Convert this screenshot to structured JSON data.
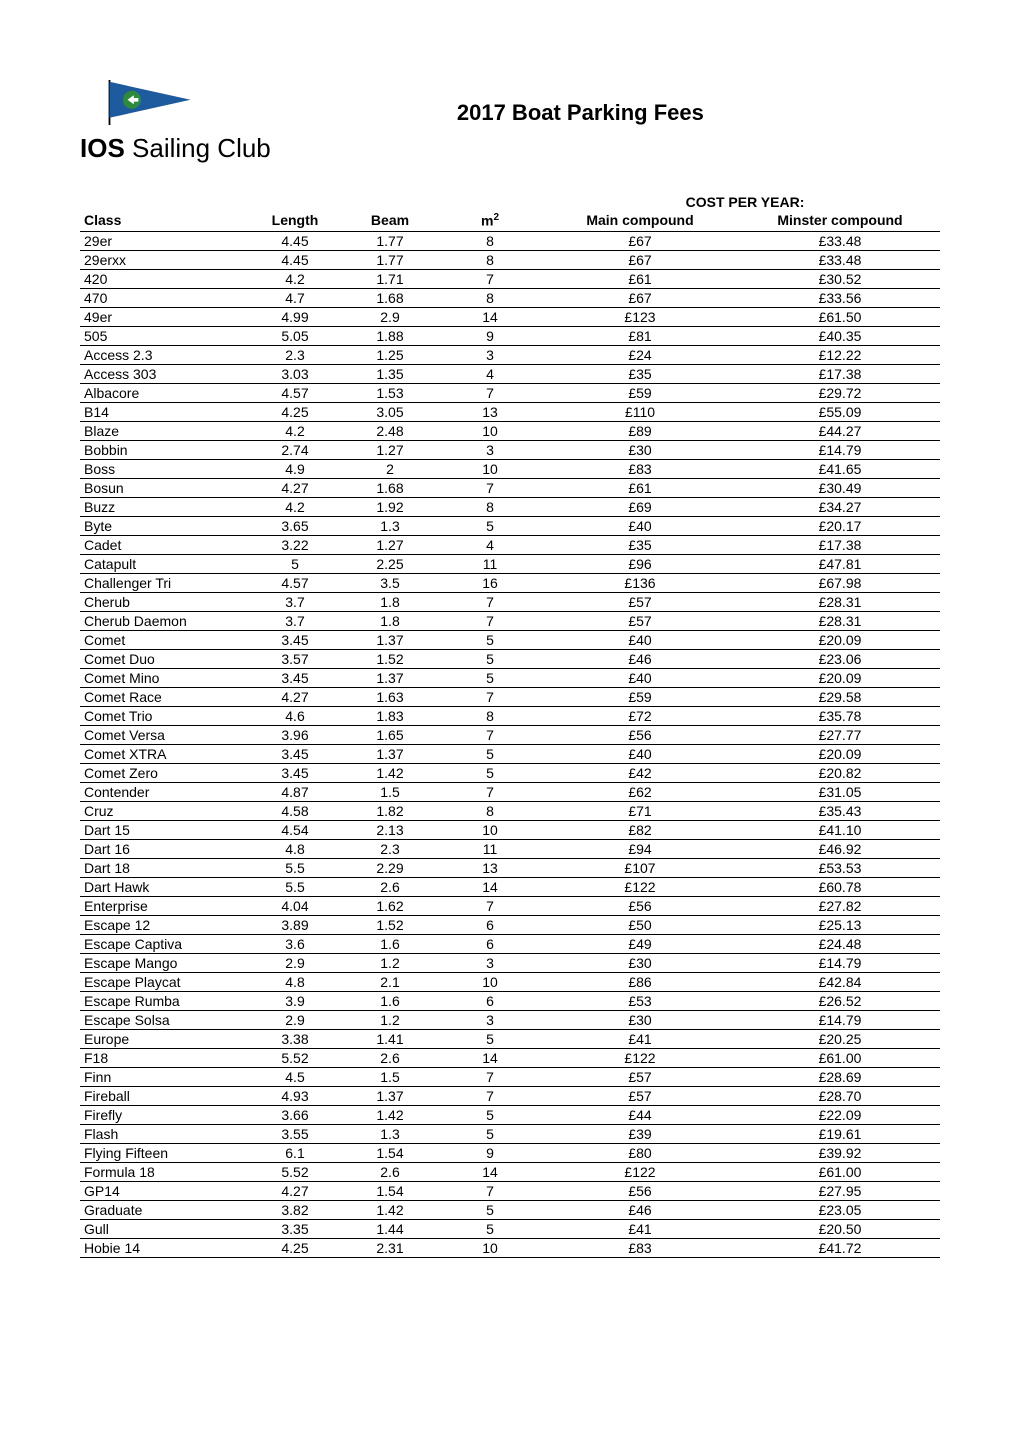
{
  "header": {
    "title": "2017 Boat Parking Fees",
    "club_name_bold": "IOS",
    "club_name_rest": " Sailing Club",
    "logo": {
      "flag_color": "#1e5a9e",
      "circle_color": "#2e8b3e",
      "arrow_color": "#ffffff",
      "pole_color": "#000000"
    }
  },
  "table": {
    "section_header": "COST PER YEAR:",
    "columns": [
      {
        "label": "Class",
        "align": "left"
      },
      {
        "label": "Length",
        "align": "center"
      },
      {
        "label": "Beam",
        "align": "center"
      },
      {
        "label": "m",
        "sup": "2",
        "align": "center"
      },
      {
        "label": "Main compound",
        "align": "center"
      },
      {
        "label": "Minster compound",
        "align": "center"
      }
    ],
    "rows": [
      {
        "class": "29er",
        "length": "4.45",
        "beam": "1.77",
        "m2": "8",
        "main": "£67",
        "minster": "£33.48"
      },
      {
        "class": "29erxx",
        "length": "4.45",
        "beam": "1.77",
        "m2": "8",
        "main": "£67",
        "minster": "£33.48"
      },
      {
        "class": "420",
        "length": "4.2",
        "beam": "1.71",
        "m2": "7",
        "main": "£61",
        "minster": "£30.52"
      },
      {
        "class": "470",
        "length": "4.7",
        "beam": "1.68",
        "m2": "8",
        "main": "£67",
        "minster": "£33.56"
      },
      {
        "class": "49er",
        "length": "4.99",
        "beam": "2.9",
        "m2": "14",
        "main": "£123",
        "minster": "£61.50"
      },
      {
        "class": "505",
        "length": "5.05",
        "beam": "1.88",
        "m2": "9",
        "main": "£81",
        "minster": "£40.35"
      },
      {
        "class": "Access 2.3",
        "length": "2.3",
        "beam": "1.25",
        "m2": "3",
        "main": "£24",
        "minster": "£12.22"
      },
      {
        "class": "Access 303",
        "length": "3.03",
        "beam": "1.35",
        "m2": "4",
        "main": "£35",
        "minster": "£17.38"
      },
      {
        "class": "Albacore",
        "length": "4.57",
        "beam": "1.53",
        "m2": "7",
        "main": "£59",
        "minster": "£29.72"
      },
      {
        "class": "B14",
        "length": "4.25",
        "beam": "3.05",
        "m2": "13",
        "main": "£110",
        "minster": "£55.09"
      },
      {
        "class": "Blaze",
        "length": "4.2",
        "beam": "2.48",
        "m2": "10",
        "main": "£89",
        "minster": "£44.27"
      },
      {
        "class": "Bobbin",
        "length": "2.74",
        "beam": "1.27",
        "m2": "3",
        "main": "£30",
        "minster": "£14.79"
      },
      {
        "class": "Boss",
        "length": "4.9",
        "beam": "2",
        "m2": "10",
        "main": "£83",
        "minster": "£41.65"
      },
      {
        "class": "Bosun",
        "length": "4.27",
        "beam": "1.68",
        "m2": "7",
        "main": "£61",
        "minster": "£30.49"
      },
      {
        "class": "Buzz",
        "length": "4.2",
        "beam": "1.92",
        "m2": "8",
        "main": "£69",
        "minster": "£34.27"
      },
      {
        "class": "Byte",
        "length": "3.65",
        "beam": "1.3",
        "m2": "5",
        "main": "£40",
        "minster": "£20.17"
      },
      {
        "class": "Cadet",
        "length": "3.22",
        "beam": "1.27",
        "m2": "4",
        "main": "£35",
        "minster": "£17.38"
      },
      {
        "class": "Catapult",
        "length": "5",
        "beam": "2.25",
        "m2": "11",
        "main": "£96",
        "minster": "£47.81"
      },
      {
        "class": "Challenger Tri",
        "length": "4.57",
        "beam": "3.5",
        "m2": "16",
        "main": "£136",
        "minster": "£67.98"
      },
      {
        "class": "Cherub",
        "length": "3.7",
        "beam": "1.8",
        "m2": "7",
        "main": "£57",
        "minster": "£28.31"
      },
      {
        "class": "Cherub Daemon",
        "length": "3.7",
        "beam": "1.8",
        "m2": "7",
        "main": "£57",
        "minster": "£28.31"
      },
      {
        "class": "Comet",
        "length": "3.45",
        "beam": "1.37",
        "m2": "5",
        "main": "£40",
        "minster": "£20.09"
      },
      {
        "class": "Comet Duo",
        "length": "3.57",
        "beam": "1.52",
        "m2": "5",
        "main": "£46",
        "minster": "£23.06"
      },
      {
        "class": "Comet Mino",
        "length": "3.45",
        "beam": "1.37",
        "m2": "5",
        "main": "£40",
        "minster": "£20.09"
      },
      {
        "class": "Comet Race",
        "length": "4.27",
        "beam": "1.63",
        "m2": "7",
        "main": "£59",
        "minster": "£29.58"
      },
      {
        "class": "Comet Trio",
        "length": "4.6",
        "beam": "1.83",
        "m2": "8",
        "main": "£72",
        "minster": "£35.78"
      },
      {
        "class": "Comet Versa",
        "length": "3.96",
        "beam": "1.65",
        "m2": "7",
        "main": "£56",
        "minster": "£27.77"
      },
      {
        "class": "Comet XTRA",
        "length": "3.45",
        "beam": "1.37",
        "m2": "5",
        "main": "£40",
        "minster": "£20.09"
      },
      {
        "class": "Comet Zero",
        "length": "3.45",
        "beam": "1.42",
        "m2": "5",
        "main": "£42",
        "minster": "£20.82"
      },
      {
        "class": "Contender",
        "length": "4.87",
        "beam": "1.5",
        "m2": "7",
        "main": "£62",
        "minster": "£31.05"
      },
      {
        "class": "Cruz",
        "length": "4.58",
        "beam": "1.82",
        "m2": "8",
        "main": "£71",
        "minster": "£35.43"
      },
      {
        "class": "Dart 15",
        "length": "4.54",
        "beam": "2.13",
        "m2": "10",
        "main": "£82",
        "minster": "£41.10"
      },
      {
        "class": "Dart 16",
        "length": "4.8",
        "beam": "2.3",
        "m2": "11",
        "main": "£94",
        "minster": "£46.92"
      },
      {
        "class": "Dart 18",
        "length": "5.5",
        "beam": "2.29",
        "m2": "13",
        "main": "£107",
        "minster": "£53.53"
      },
      {
        "class": "Dart Hawk",
        "length": "5.5",
        "beam": "2.6",
        "m2": "14",
        "main": "£122",
        "minster": "£60.78"
      },
      {
        "class": "Enterprise",
        "length": "4.04",
        "beam": "1.62",
        "m2": "7",
        "main": "£56",
        "minster": "£27.82"
      },
      {
        "class": "Escape 12",
        "length": "3.89",
        "beam": "1.52",
        "m2": "6",
        "main": "£50",
        "minster": "£25.13"
      },
      {
        "class": "Escape Captiva",
        "length": "3.6",
        "beam": "1.6",
        "m2": "6",
        "main": "£49",
        "minster": "£24.48"
      },
      {
        "class": "Escape Mango",
        "length": "2.9",
        "beam": "1.2",
        "m2": "3",
        "main": "£30",
        "minster": "£14.79"
      },
      {
        "class": "Escape Playcat",
        "length": "4.8",
        "beam": "2.1",
        "m2": "10",
        "main": "£86",
        "minster": "£42.84"
      },
      {
        "class": "Escape Rumba",
        "length": "3.9",
        "beam": "1.6",
        "m2": "6",
        "main": "£53",
        "minster": "£26.52"
      },
      {
        "class": "Escape Solsa",
        "length": "2.9",
        "beam": "1.2",
        "m2": "3",
        "main": "£30",
        "minster": "£14.79"
      },
      {
        "class": "Europe",
        "length": "3.38",
        "beam": "1.41",
        "m2": "5",
        "main": "£41",
        "minster": "£20.25"
      },
      {
        "class": "F18",
        "length": "5.52",
        "beam": "2.6",
        "m2": "14",
        "main": "£122",
        "minster": "£61.00"
      },
      {
        "class": "Finn",
        "length": "4.5",
        "beam": "1.5",
        "m2": "7",
        "main": "£57",
        "minster": "£28.69"
      },
      {
        "class": "Fireball",
        "length": "4.93",
        "beam": "1.37",
        "m2": "7",
        "main": "£57",
        "minster": "£28.70"
      },
      {
        "class": "Firefly",
        "length": "3.66",
        "beam": "1.42",
        "m2": "5",
        "main": "£44",
        "minster": "£22.09"
      },
      {
        "class": "Flash",
        "length": "3.55",
        "beam": "1.3",
        "m2": "5",
        "main": "£39",
        "minster": "£19.61"
      },
      {
        "class": "Flying Fifteen",
        "length": "6.1",
        "beam": "1.54",
        "m2": "9",
        "main": "£80",
        "minster": "£39.92"
      },
      {
        "class": "Formula 18",
        "length": "5.52",
        "beam": "2.6",
        "m2": "14",
        "main": "£122",
        "minster": "£61.00"
      },
      {
        "class": "GP14",
        "length": "4.27",
        "beam": "1.54",
        "m2": "7",
        "main": "£56",
        "minster": "£27.95"
      },
      {
        "class": "Graduate",
        "length": "3.82",
        "beam": "1.42",
        "m2": "5",
        "main": "£46",
        "minster": "£23.05"
      },
      {
        "class": "Gull",
        "length": "3.35",
        "beam": "1.44",
        "m2": "5",
        "main": "£41",
        "minster": "£20.50"
      },
      {
        "class": "Hobie 14",
        "length": "4.25",
        "beam": "2.31",
        "m2": "10",
        "main": "£83",
        "minster": "£41.72"
      }
    ]
  }
}
